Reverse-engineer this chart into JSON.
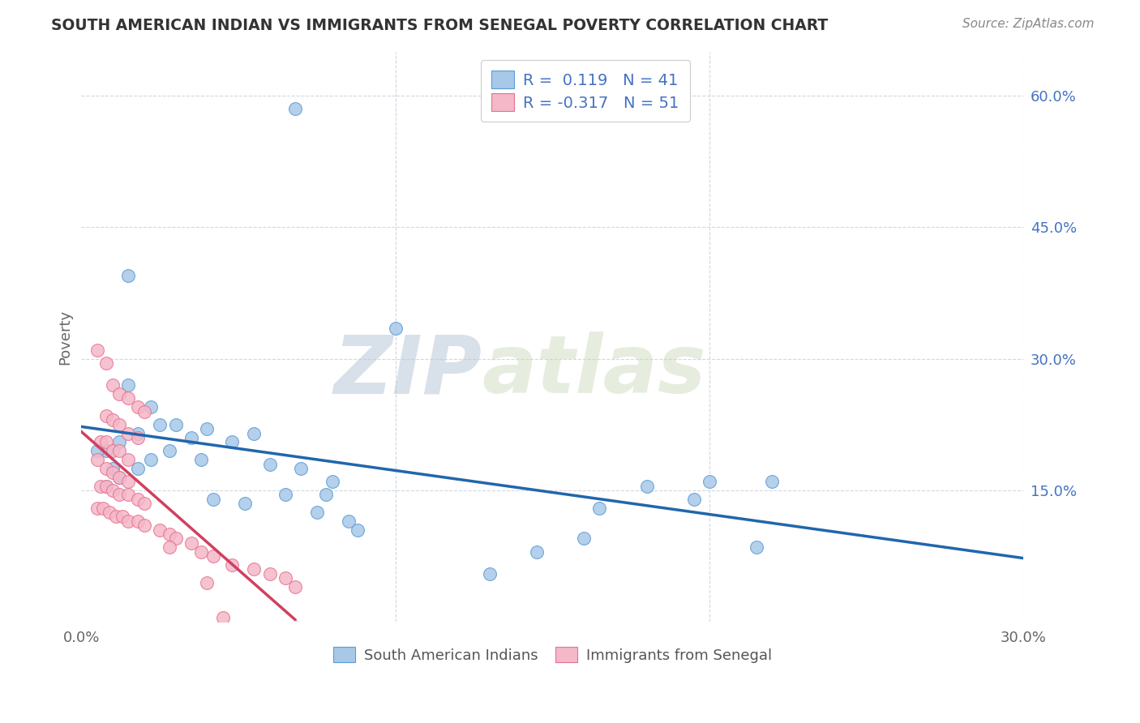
{
  "title": "SOUTH AMERICAN INDIAN VS IMMIGRANTS FROM SENEGAL POVERTY CORRELATION CHART",
  "source": "Source: ZipAtlas.com",
  "ylabel": "Poverty",
  "xlim": [
    0.0,
    0.3
  ],
  "ylim": [
    0.0,
    0.65
  ],
  "R_blue": 0.119,
  "N_blue": 41,
  "R_pink": -0.317,
  "N_pink": 51,
  "blue_color": "#a8c8e8",
  "blue_edge_color": "#5b9bd5",
  "pink_color": "#f4b8c8",
  "pink_edge_color": "#e87090",
  "regression_blue_color": "#2166ac",
  "regression_pink_color": "#d04060",
  "regression_pink_dash_color": "#c8c8c8",
  "blue_scatter_x": [
    0.068,
    0.015,
    0.1,
    0.015,
    0.022,
    0.025,
    0.018,
    0.012,
    0.008,
    0.03,
    0.035,
    0.028,
    0.022,
    0.018,
    0.012,
    0.008,
    0.005,
    0.01,
    0.04,
    0.055,
    0.048,
    0.038,
    0.06,
    0.07,
    0.08,
    0.065,
    0.042,
    0.052,
    0.075,
    0.085,
    0.088,
    0.078,
    0.18,
    0.2,
    0.22,
    0.195,
    0.215,
    0.16,
    0.145,
    0.13,
    0.165
  ],
  "blue_scatter_y": [
    0.585,
    0.395,
    0.335,
    0.27,
    0.245,
    0.225,
    0.215,
    0.205,
    0.195,
    0.225,
    0.21,
    0.195,
    0.185,
    0.175,
    0.165,
    0.155,
    0.195,
    0.175,
    0.22,
    0.215,
    0.205,
    0.185,
    0.18,
    0.175,
    0.16,
    0.145,
    0.14,
    0.135,
    0.125,
    0.115,
    0.105,
    0.145,
    0.155,
    0.16,
    0.16,
    0.14,
    0.085,
    0.095,
    0.08,
    0.055,
    0.13
  ],
  "pink_scatter_x": [
    0.005,
    0.008,
    0.01,
    0.012,
    0.015,
    0.018,
    0.02,
    0.008,
    0.01,
    0.012,
    0.015,
    0.018,
    0.006,
    0.008,
    0.01,
    0.012,
    0.015,
    0.005,
    0.008,
    0.01,
    0.012,
    0.015,
    0.006,
    0.008,
    0.01,
    0.012,
    0.015,
    0.018,
    0.02,
    0.005,
    0.007,
    0.009,
    0.011,
    0.013,
    0.015,
    0.018,
    0.02,
    0.025,
    0.028,
    0.03,
    0.035,
    0.028,
    0.038,
    0.042,
    0.048,
    0.055,
    0.06,
    0.065,
    0.04,
    0.068,
    0.045
  ],
  "pink_scatter_y": [
    0.31,
    0.295,
    0.27,
    0.26,
    0.255,
    0.245,
    0.24,
    0.235,
    0.23,
    0.225,
    0.215,
    0.21,
    0.205,
    0.205,
    0.195,
    0.195,
    0.185,
    0.185,
    0.175,
    0.17,
    0.165,
    0.16,
    0.155,
    0.155,
    0.15,
    0.145,
    0.145,
    0.14,
    0.135,
    0.13,
    0.13,
    0.125,
    0.12,
    0.12,
    0.115,
    0.115,
    0.11,
    0.105,
    0.1,
    0.095,
    0.09,
    0.085,
    0.08,
    0.075,
    0.065,
    0.06,
    0.055,
    0.05,
    0.045,
    0.04,
    0.005
  ],
  "watermark_zip": "ZIP",
  "watermark_atlas": "atlas",
  "background_color": "#ffffff",
  "grid_color": "#d0d8e0",
  "bottom_legend_labels": [
    "South American Indians",
    "Immigrants from Senegal"
  ]
}
